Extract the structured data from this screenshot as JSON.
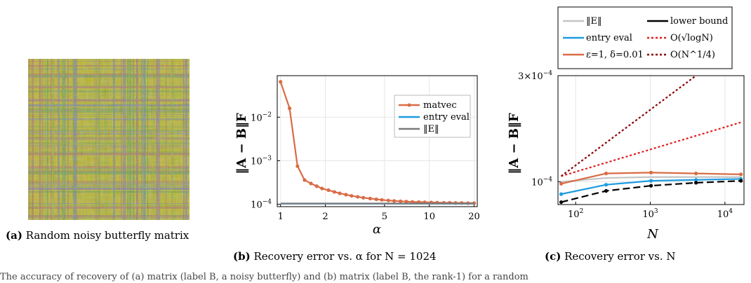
{
  "captions": {
    "a": {
      "label": "(a)",
      "text": "Random noisy butterfly matrix"
    },
    "b": {
      "label": "(b)",
      "text": "Recovery error vs. α for N = 1024"
    },
    "c": {
      "label": "(c)",
      "text": "Recovery error vs. N"
    }
  },
  "bottom_text": "The accuracy of recovery of (a) matrix (label B, a noisy butterfly) and (b) matrix (label B, the rank-1) for a random",
  "matrix_colors": {
    "base": "#c9bf2a",
    "accent1": "#a6b23a",
    "accent2": "#b9686f",
    "accent3": "#7a7fbf",
    "accent4": "#5fa05a"
  },
  "chart_data": [
    {
      "type": "line",
      "title": "",
      "xlabel": "α",
      "ylabel": "‖A − B‖F",
      "x_scale": "log",
      "y_scale": "log",
      "xlim": [
        0.95,
        21
      ],
      "ylim": [
        8.8e-05,
        0.09
      ],
      "x_ticks": [
        {
          "v": 1,
          "label": "1"
        },
        {
          "v": 2,
          "label": "2"
        },
        {
          "v": 5,
          "label": "5"
        },
        {
          "v": 10,
          "label": "10"
        },
        {
          "v": 20,
          "label": "20"
        }
      ],
      "y_ticks": [
        {
          "v": 0.0001,
          "label": "10",
          "exp": "−4"
        },
        {
          "v": 0.001,
          "label": "10",
          "exp": "−3"
        },
        {
          "v": 0.01,
          "label": "10",
          "exp": "−2"
        }
      ],
      "grid": true,
      "legend_position": "top-right",
      "series": [
        {
          "name": "matvec",
          "color": "#d96c45",
          "marker": true,
          "x": [
            1,
            1.15,
            1.3,
            1.45,
            1.6,
            1.75,
            1.9,
            2.1,
            2.3,
            2.5,
            2.75,
            3,
            3.3,
            3.6,
            4,
            4.4,
            4.8,
            5.3,
            5.8,
            6.4,
            7,
            7.7,
            8.5,
            9.3,
            10.3,
            11.3,
            12.5,
            13.7,
            15,
            16.5,
            18.2,
            20
          ],
          "y": [
            0.065,
            0.016,
            0.00075,
            0.00036,
            0.0003,
            0.00026,
            0.00023,
            0.00021,
            0.000192,
            0.000178,
            0.000166,
            0.000156,
            0.000148,
            0.000141,
            0.000135,
            0.00013,
            0.000126,
            0.000122,
            0.000119,
            0.000117,
            0.000115,
            0.000113,
            0.000112,
            0.000111,
            0.00011,
            0.000109,
            0.000108,
            0.000108,
            0.000107,
            0.000107,
            0.000106,
            0.000106
          ]
        },
        {
          "name": "entry eval",
          "color": "#1e9be0",
          "marker": false,
          "x": [
            1,
            20
          ],
          "y": [
            0.000103,
            0.000103
          ]
        },
        {
          "name": "‖E‖",
          "color": "#7a7a7a",
          "marker": false,
          "x": [
            1,
            20
          ],
          "y": [
            0.000104,
            0.000104
          ]
        }
      ]
    },
    {
      "type": "line",
      "title": "",
      "xlabel": "N",
      "ylabel": "‖A − B‖F",
      "x_scale": "log",
      "y_scale": "log",
      "xlim": [
        58,
        18000
      ],
      "ylim": [
        7.9e-05,
        0.0003
      ],
      "x_ticks": [
        {
          "v": 100,
          "label": "10",
          "exp": "2"
        },
        {
          "v": 1000,
          "label": "10",
          "exp": "3"
        },
        {
          "v": 10000,
          "label": "10",
          "exp": "4"
        }
      ],
      "y_ticks": [
        {
          "v": 0.0001,
          "label": "10",
          "exp": "−4"
        },
        {
          "v": 0.0003,
          "label": "3×10",
          "exp": "−4"
        }
      ],
      "grid": true,
      "legend_position": "top",
      "series": [
        {
          "name": "‖E‖",
          "color": "#c4c4c4",
          "dash": "",
          "marker": false,
          "x": [
            64,
            256,
            1024,
            4096,
            16384
          ],
          "y": [
            0.0001,
            0.000104,
            0.000105,
            0.000105,
            0.000105
          ]
        },
        {
          "name": "entry eval",
          "color": "#1e9be0",
          "dash": "",
          "marker": true,
          "x": [
            64,
            256,
            1024,
            4096,
            16384
          ],
          "y": [
            8.8e-05,
            9.7e-05,
            0.000101,
            0.000102,
            0.000103
          ]
        },
        {
          "name": "ε=1, δ=0.01",
          "color": "#d96c45",
          "dash": "",
          "marker": true,
          "x": [
            64,
            256,
            1024,
            4096,
            16384
          ],
          "y": [
            9.8e-05,
            0.000109,
            0.00011,
            0.000109,
            0.000108
          ]
        },
        {
          "name": "lower bound",
          "color": "#000000",
          "dash": "10,5",
          "marker": true,
          "x": [
            64,
            256,
            1024,
            4096,
            16384
          ],
          "y": [
            8.1e-05,
            9.1e-05,
            9.6e-05,
            9.9e-05,
            0.000101
          ]
        },
        {
          "name": "O(√logN)",
          "color": "#e21c1c",
          "dash": "3,3",
          "marker": false,
          "x": [
            64,
            16384
          ],
          "y": [
            0.000106,
            0.000185
          ]
        },
        {
          "name": "O(N^1/4)",
          "color": "#8b0000",
          "dash": "3,3",
          "marker": false,
          "x": [
            64,
            4096
          ],
          "y": [
            0.000106,
            0.0003
          ]
        }
      ]
    }
  ]
}
